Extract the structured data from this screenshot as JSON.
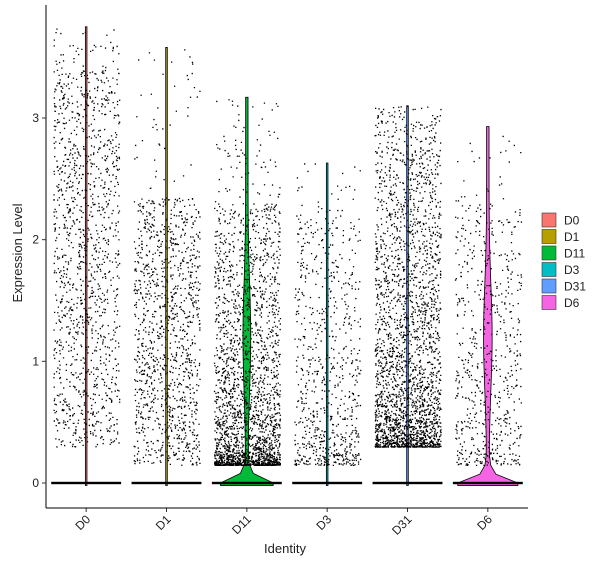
{
  "chart_data": {
    "type": "violin",
    "title": "",
    "xlabel": "Identity",
    "ylabel": "Expression Level",
    "categories": [
      "D0",
      "D1",
      "D11",
      "D3",
      "D31",
      "D6"
    ],
    "ylim": [
      -0.22,
      3.95
    ],
    "y_ticks": [
      0,
      1,
      2,
      3
    ],
    "y_tick_labels": [
      "0",
      "1",
      "2",
      "3"
    ],
    "grid": false,
    "legend_position": "right",
    "legend": [
      {
        "label": "D0",
        "color": "#F8766D"
      },
      {
        "label": "D1",
        "color": "#B79F00"
      },
      {
        "label": "D11",
        "color": "#00BA38"
      },
      {
        "label": "D3",
        "color": "#00BFC4"
      },
      {
        "label": "D31",
        "color": "#619CFF"
      },
      {
        "label": "D6",
        "color": "#F564E3"
      }
    ],
    "series": [
      {
        "category": "D0",
        "color": "#F8766D",
        "max": 3.75,
        "jitter_top": 3.4,
        "jitter_bottom": 0.3,
        "points": 1300,
        "skew": 1.0,
        "zero_width": 0.03
      },
      {
        "category": "D1",
        "color": "#B79F00",
        "max": 3.58,
        "jitter_top": 2.35,
        "jitter_bottom": 0.15,
        "points": 1200,
        "skew": 1.0,
        "zero_width": 0.03
      },
      {
        "category": "D11",
        "color": "#00BA38",
        "max": 3.17,
        "jitter_top": 2.3,
        "jitter_bottom": 0.15,
        "points": 2400,
        "skew": 2.2,
        "zero_width": 0.68
      },
      {
        "category": "D3",
        "color": "#00BFC4",
        "max": 2.63,
        "jitter_top": 2.2,
        "jitter_bottom": 0.15,
        "points": 750,
        "skew": 1.6,
        "zero_width": 0.03
      },
      {
        "category": "D31",
        "color": "#619CFF",
        "max": 3.1,
        "jitter_top": 2.8,
        "jitter_bottom": 0.3,
        "points": 2600,
        "skew": 2.0,
        "zero_width": 0.03
      },
      {
        "category": "D6",
        "color": "#F564E3",
        "max": 2.93,
        "jitter_top": 2.3,
        "jitter_bottom": 0.15,
        "points": 650,
        "skew": 1.4,
        "zero_width": 0.78
      }
    ]
  }
}
